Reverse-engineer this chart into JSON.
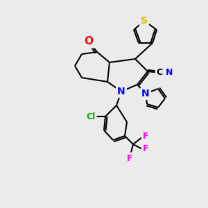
{
  "bg_color": "#ebebeb",
  "bond_color": "#000000",
  "bond_width": 1.5,
  "atom_colors": {
    "S": "#cccc00",
    "O": "#ff0000",
    "N": "#0000ff",
    "Cl": "#00aa00",
    "F": "#ff00ff",
    "C": "#000000",
    "CN_C": "#000000",
    "CN_N": "#0000ff"
  },
  "figsize": [
    3.0,
    3.0
  ],
  "dpi": 100
}
